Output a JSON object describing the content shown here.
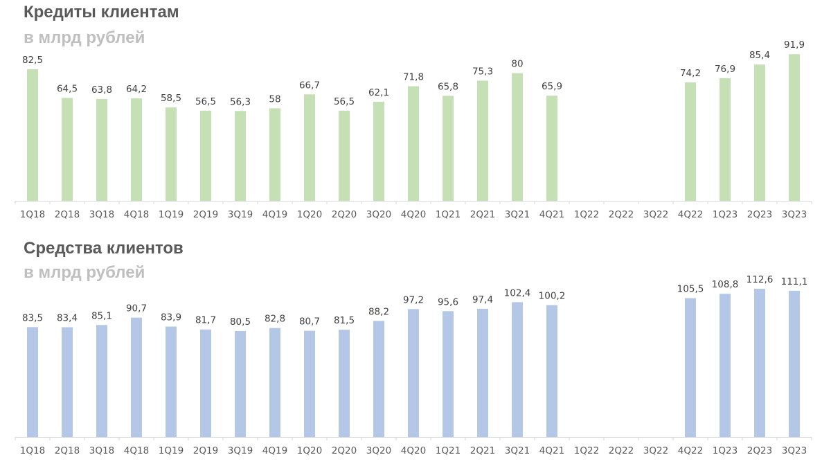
{
  "chart_data": [
    {
      "type": "bar",
      "title": "Кредиты клиентам",
      "subtitle": "в млрд рублей",
      "color": "#c5e0b4",
      "categories": [
        "1Q18",
        "2Q18",
        "3Q18",
        "4Q18",
        "1Q19",
        "2Q19",
        "3Q19",
        "4Q19",
        "1Q20",
        "2Q20",
        "3Q20",
        "4Q20",
        "1Q21",
        "2Q21",
        "3Q21",
        "4Q21",
        "1Q22",
        "2Q22",
        "3Q22",
        "4Q22",
        "1Q23",
        "2Q23",
        "3Q23"
      ],
      "values": [
        82.5,
        64.5,
        63.8,
        64.2,
        58.5,
        56.5,
        56.3,
        58,
        66.7,
        56.5,
        62.1,
        71.8,
        65.8,
        75.3,
        80,
        65.9,
        null,
        null,
        null,
        74.2,
        76.9,
        85.4,
        91.9
      ],
      "value_labels": [
        "82,5",
        "64,5",
        "63,8",
        "64,2",
        "58,5",
        "56,5",
        "56,3",
        "58",
        "66,7",
        "56,5",
        "62,1",
        "71,8",
        "65,8",
        "75,3",
        "80",
        "65,9",
        "",
        "",
        "",
        "74,2",
        "76,9",
        "85,4",
        "91,9"
      ],
      "ylim": [
        0,
        92
      ],
      "grid": false,
      "legend": "none"
    },
    {
      "type": "bar",
      "title": "Средства клиентов",
      "subtitle": "в млрд рублей",
      "color": "#b4c7e7",
      "categories": [
        "1Q18",
        "2Q18",
        "3Q18",
        "4Q18",
        "1Q19",
        "2Q19",
        "3Q19",
        "4Q19",
        "1Q20",
        "2Q20",
        "3Q20",
        "4Q20",
        "1Q21",
        "2Q21",
        "3Q21",
        "4Q21",
        "1Q22",
        "2Q22",
        "3Q22",
        "4Q22",
        "1Q23",
        "2Q23",
        "3Q23"
      ],
      "values": [
        83.5,
        83.4,
        85.1,
        90.7,
        83.9,
        81.7,
        80.5,
        82.8,
        80.7,
        81.5,
        88.2,
        97.2,
        95.6,
        97.4,
        102.4,
        100.2,
        null,
        null,
        null,
        105.5,
        108.8,
        112.6,
        111.1
      ],
      "value_labels": [
        "83,5",
        "83,4",
        "85,1",
        "90,7",
        "83,9",
        "81,7",
        "80,5",
        "82,8",
        "80,7",
        "81,5",
        "88,2",
        "97,2",
        "95,6",
        "97,4",
        "102,4",
        "100,2",
        "",
        "",
        "",
        "105,5",
        "108,8",
        "112,6",
        "111,1"
      ],
      "ylim": [
        0,
        112.6
      ],
      "grid": false,
      "legend": "none"
    }
  ]
}
